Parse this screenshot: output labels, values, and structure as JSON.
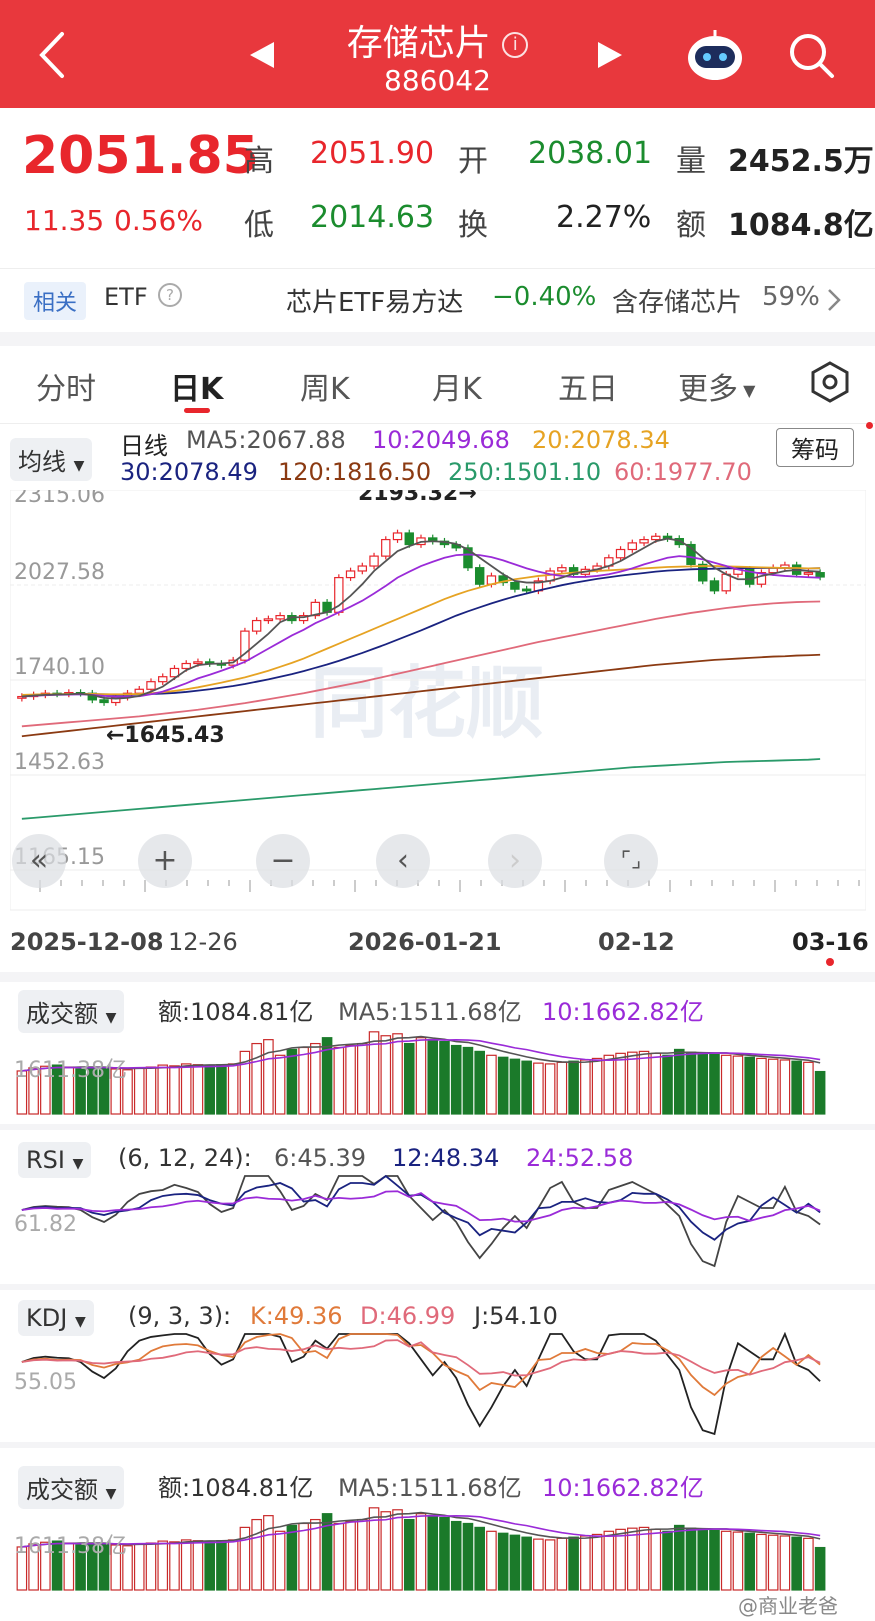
{
  "header": {
    "title": "存储芯片",
    "code": "886042",
    "back_icon": "back-arrow-icon",
    "info_icon": "info-icon",
    "bg_color": "#e8383d"
  },
  "quote": {
    "price": "2051.85",
    "change": "11.35",
    "change_pct": "0.56%",
    "high_label": "高",
    "high": "2051.90",
    "open_label": "开",
    "open": "2038.01",
    "volume_label": "量",
    "volume": "2452.5万",
    "low_label": "低",
    "low": "2014.63",
    "turnover_label": "换",
    "turnover": "2.27%",
    "amount_label": "额",
    "amount": "1084.8亿"
  },
  "etf": {
    "related": "相关",
    "etf_label": "ETF",
    "name": "芯片ETF易方达",
    "change": "−0.40%",
    "holding": "含存储芯片",
    "holding_pct": "59%"
  },
  "tabs": [
    "分时",
    "日K",
    "周K",
    "月K",
    "五日",
    "更多"
  ],
  "active_tab": 1,
  "kline": {
    "ma_dropdown": "均线",
    "period": "日线",
    "chip_button": "筹码",
    "ma5": "MA5:2067.88",
    "ma10": "10:2049.68",
    "ma20": "20:2078.34",
    "ma30": "30:2078.49",
    "ma120": "120:1816.50",
    "ma250": "250:1501.10",
    "ma60": "60:1977.70",
    "y_labels": [
      "2315.06",
      "2027.58",
      "1740.10",
      "1452.63",
      "1165.15"
    ],
    "high_marker": "2193.32→",
    "low_marker": "←1645.43",
    "x_labels": [
      "2025-12-08",
      "12-26",
      "2026-01-21",
      "02-12",
      "03-16"
    ],
    "watermark": "同花顺"
  },
  "volume1": {
    "dropdown": "成交额",
    "amount": "额:1084.81亿",
    "ma5": "MA5:1511.68亿",
    "ma10": "10:1662.82亿",
    "y_label": "1611.38亿"
  },
  "rsi": {
    "dropdown": "RSI",
    "params": "(6, 12, 24):",
    "v6": "6:45.39",
    "v12": "12:48.34",
    "v24": "24:52.58",
    "y_label": "61.82"
  },
  "kdj": {
    "dropdown": "KDJ",
    "params": "(9, 3, 3):",
    "k": "K:49.36",
    "d": "D:46.99",
    "j": "J:54.10",
    "y_label": "55.05"
  },
  "volume2": {
    "dropdown": "成交额",
    "amount": "额:1084.81亿",
    "ma5": "MA5:1511.68亿",
    "ma10": "10:1662.82亿",
    "y_label": "1611.38亿"
  },
  "footer_watermark": "@商业老爸",
  "chart_data": {
    "type": "candlestick",
    "y_ticks": [
      2315.06,
      2027.58,
      1740.1,
      1452.63,
      1165.15
    ],
    "ylim": [
      1165.15,
      2315.06
    ],
    "x_tick_labels": [
      "2025-12-08",
      "12-26",
      "2026-01-21",
      "02-12",
      "03-16"
    ],
    "close": [
      1690,
      1695,
      1700,
      1698,
      1702,
      1700,
      1680,
      1672,
      1688,
      1700,
      1712,
      1735,
      1750,
      1775,
      1790,
      1795,
      1790,
      1785,
      1800,
      1888,
      1920,
      1925,
      1935,
      1920,
      1935,
      1975,
      1945,
      2050,
      2070,
      2085,
      2115,
      2165,
      2185,
      2150,
      2170,
      2160,
      2150,
      2140,
      2080,
      2030,
      2055,
      2035,
      2015,
      2010,
      2040,
      2070,
      2080,
      2060,
      2075,
      2085,
      2110,
      2135,
      2155,
      2165,
      2175,
      2168,
      2150,
      2090,
      2040,
      2010,
      2060,
      2075,
      2030,
      2065,
      2080,
      2088,
      2060,
      2065,
      2051.85
    ],
    "ma5": [
      1690,
      1693,
      1695,
      1696,
      1697,
      1699,
      1694,
      1686,
      1684,
      1686,
      1692,
      1705,
      1720,
      1745,
      1770,
      1785,
      1789,
      1790,
      1793,
      1820,
      1850,
      1880,
      1915,
      1930,
      1930,
      1938,
      1945,
      1965,
      1995,
      2030,
      2070,
      2100,
      2130,
      2145,
      2158,
      2160,
      2158,
      2152,
      2135,
      2110,
      2085,
      2060,
      2040,
      2035,
      2035,
      2040,
      2050,
      2062,
      2068,
      2075,
      2085,
      2100,
      2120,
      2140,
      2160,
      2168,
      2162,
      2140,
      2110,
      2080,
      2060,
      2045,
      2045,
      2055,
      2062,
      2070,
      2073,
      2070,
      2067.88
    ],
    "ma10": [
      1690,
      1692,
      1694,
      1695,
      1696,
      1697,
      1695,
      1692,
      1690,
      1690,
      1691,
      1697,
      1705,
      1717,
      1730,
      1745,
      1756,
      1768,
      1781,
      1795,
      1815,
      1835,
      1855,
      1875,
      1892,
      1912,
      1928,
      1945,
      1962,
      1980,
      2002,
      2025,
      2050,
      2068,
      2085,
      2098,
      2110,
      2118,
      2120,
      2118,
      2112,
      2102,
      2090,
      2078,
      2068,
      2060,
      2055,
      2052,
      2052,
      2055,
      2060,
      2068,
      2078,
      2090,
      2100,
      2110,
      2115,
      2112,
      2105,
      2095,
      2085,
      2075,
      2068,
      2062,
      2058,
      2055,
      2053,
      2051,
      2049.68
    ],
    "ma20": [
      1695,
      1696,
      1697,
      1697,
      1698,
      1698,
      1698,
      1697,
      1697,
      1697,
      1698,
      1700,
      1703,
      1707,
      1712,
      1718,
      1725,
      1732,
      1740,
      1748,
      1758,
      1768,
      1780,
      1792,
      1805,
      1820,
      1835,
      1850,
      1865,
      1880,
      1895,
      1910,
      1925,
      1940,
      1955,
      1970,
      1985,
      1998,
      2010,
      2020,
      2030,
      2038,
      2045,
      2050,
      2055,
      2058,
      2062,
      2065,
      2068,
      2070,
      2072,
      2074,
      2076,
      2078,
      2080,
      2082,
      2083,
      2084,
      2085,
      2085,
      2084,
      2083,
      2082,
      2081,
      2080,
      2079,
      2079,
      2078,
      2078.34
    ],
    "ma30": [
      1695,
      1695,
      1696,
      1696,
      1697,
      1697,
      1697,
      1697,
      1696,
      1696,
      1697,
      1698,
      1699,
      1701,
      1704,
      1708,
      1712,
      1717,
      1722,
      1728,
      1735,
      1742,
      1750,
      1758,
      1767,
      1777,
      1787,
      1798,
      1810,
      1822,
      1835,
      1848,
      1862,
      1876,
      1890,
      1905,
      1920,
      1935,
      1948,
      1960,
      1972,
      1983,
      1993,
      2002,
      2011,
      2019,
      2027,
      2034,
      2040,
      2046,
      2051,
      2056,
      2060,
      2064,
      2068,
      2071,
      2073,
      2075,
      2076,
      2077,
      2078,
      2078,
      2079,
      2079,
      2079,
      2079,
      2078,
      2078,
      2078.49
    ],
    "ma120": [
      1570,
      1574,
      1578,
      1582,
      1586,
      1590,
      1594,
      1598,
      1602,
      1606,
      1610,
      1614,
      1618,
      1622,
      1626,
      1630,
      1634,
      1638,
      1642,
      1646,
      1650,
      1654,
      1658,
      1662,
      1666,
      1670,
      1674,
      1678,
      1682,
      1686,
      1690,
      1694,
      1698,
      1702,
      1706,
      1710,
      1714,
      1718,
      1722,
      1726,
      1730,
      1734,
      1738,
      1742,
      1746,
      1750,
      1754,
      1758,
      1762,
      1766,
      1770,
      1774,
      1778,
      1782,
      1786,
      1789,
      1792,
      1795,
      1798,
      1801,
      1803,
      1805,
      1807,
      1809,
      1811,
      1812,
      1814,
      1815,
      1816.5
    ],
    "ma250": [
      1320,
      1323,
      1326,
      1329,
      1332,
      1335,
      1338,
      1341,
      1344,
      1347,
      1350,
      1353,
      1356,
      1359,
      1362,
      1365,
      1368,
      1371,
      1374,
      1377,
      1380,
      1383,
      1386,
      1389,
      1392,
      1395,
      1398,
      1401,
      1404,
      1407,
      1410,
      1413,
      1416,
      1419,
      1422,
      1425,
      1428,
      1431,
      1434,
      1437,
      1440,
      1443,
      1446,
      1449,
      1452,
      1455,
      1458,
      1461,
      1464,
      1467,
      1470,
      1473,
      1476,
      1478,
      1480,
      1482,
      1484,
      1486,
      1488,
      1490,
      1492,
      1493,
      1494,
      1495,
      1496,
      1497,
      1498,
      1499,
      1501.1
    ],
    "ma60": [
      1600,
      1603,
      1606,
      1609,
      1612,
      1615,
      1618,
      1621,
      1624,
      1627,
      1630,
      1634,
      1638,
      1642,
      1646,
      1650,
      1655,
      1660,
      1665,
      1670,
      1676,
      1682,
      1688,
      1694,
      1700,
      1707,
      1714,
      1721,
      1728,
      1735,
      1743,
      1751,
      1759,
      1767,
      1775,
      1783,
      1791,
      1799,
      1807,
      1815,
      1823,
      1831,
      1839,
      1847,
      1855,
      1862,
      1869,
      1876,
      1883,
      1890,
      1897,
      1904,
      1911,
      1918,
      1925,
      1931,
      1937,
      1943,
      1948,
      1953,
      1958,
      1962,
      1966,
      1969,
      1972,
      1974,
      1976,
      1977,
      1977.7
    ],
    "volume": [
      1100,
      1180,
      1220,
      1250,
      1200,
      1150,
      1180,
      1200,
      1150,
      1130,
      1180,
      1200,
      1250,
      1230,
      1280,
      1260,
      1250,
      1260,
      1280,
      1600,
      1800,
      1900,
      1500,
      1650,
      1700,
      1800,
      1950,
      1700,
      1750,
      1800,
      2100,
      2000,
      2050,
      1800,
      1950,
      1900,
      1850,
      1750,
      1700,
      1600,
      1500,
      1450,
      1400,
      1350,
      1300,
      1280,
      1320,
      1350,
      1380,
      1420,
      1500,
      1550,
      1580,
      1600,
      1550,
      1500,
      1650,
      1580,
      1550,
      1520,
      1500,
      1480,
      1450,
      1420,
      1400,
      1380,
      1350,
      1320,
      1084.81
    ]
  }
}
